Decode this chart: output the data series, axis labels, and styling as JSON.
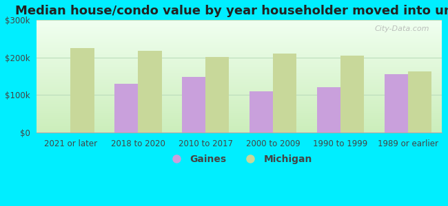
{
  "title": "Median house/condo value by year householder moved into unit",
  "categories": [
    "2021 or later",
    "2018 to 2020",
    "2010 to 2017",
    "2000 to 2009",
    "1990 to 1999",
    "1989 or earlier"
  ],
  "gaines_values": [
    0,
    130000,
    148000,
    110000,
    120000,
    155000
  ],
  "michigan_values": [
    225000,
    218000,
    202000,
    210000,
    205000,
    163000
  ],
  "gaines_color": "#c9a0dc",
  "michigan_color": "#c8d89a",
  "background_outer": "#00eeff",
  "grad_bottom": "#cceebb",
  "grad_top": "#f0fff0",
  "bar_width": 0.35,
  "ylim": [
    0,
    300000
  ],
  "yticks": [
    0,
    100000,
    200000,
    300000
  ],
  "ytick_labels": [
    "$0",
    "$100k",
    "$200k",
    "$300k"
  ],
  "watermark": "City-Data.com",
  "legend_labels": [
    "Gaines",
    "Michigan"
  ],
  "title_fontsize": 13,
  "tick_fontsize": 8.5,
  "legend_fontsize": 10,
  "axis_text_color": "#444444",
  "grid_color": "#bbddbb",
  "spine_color": "#aaaaaa"
}
